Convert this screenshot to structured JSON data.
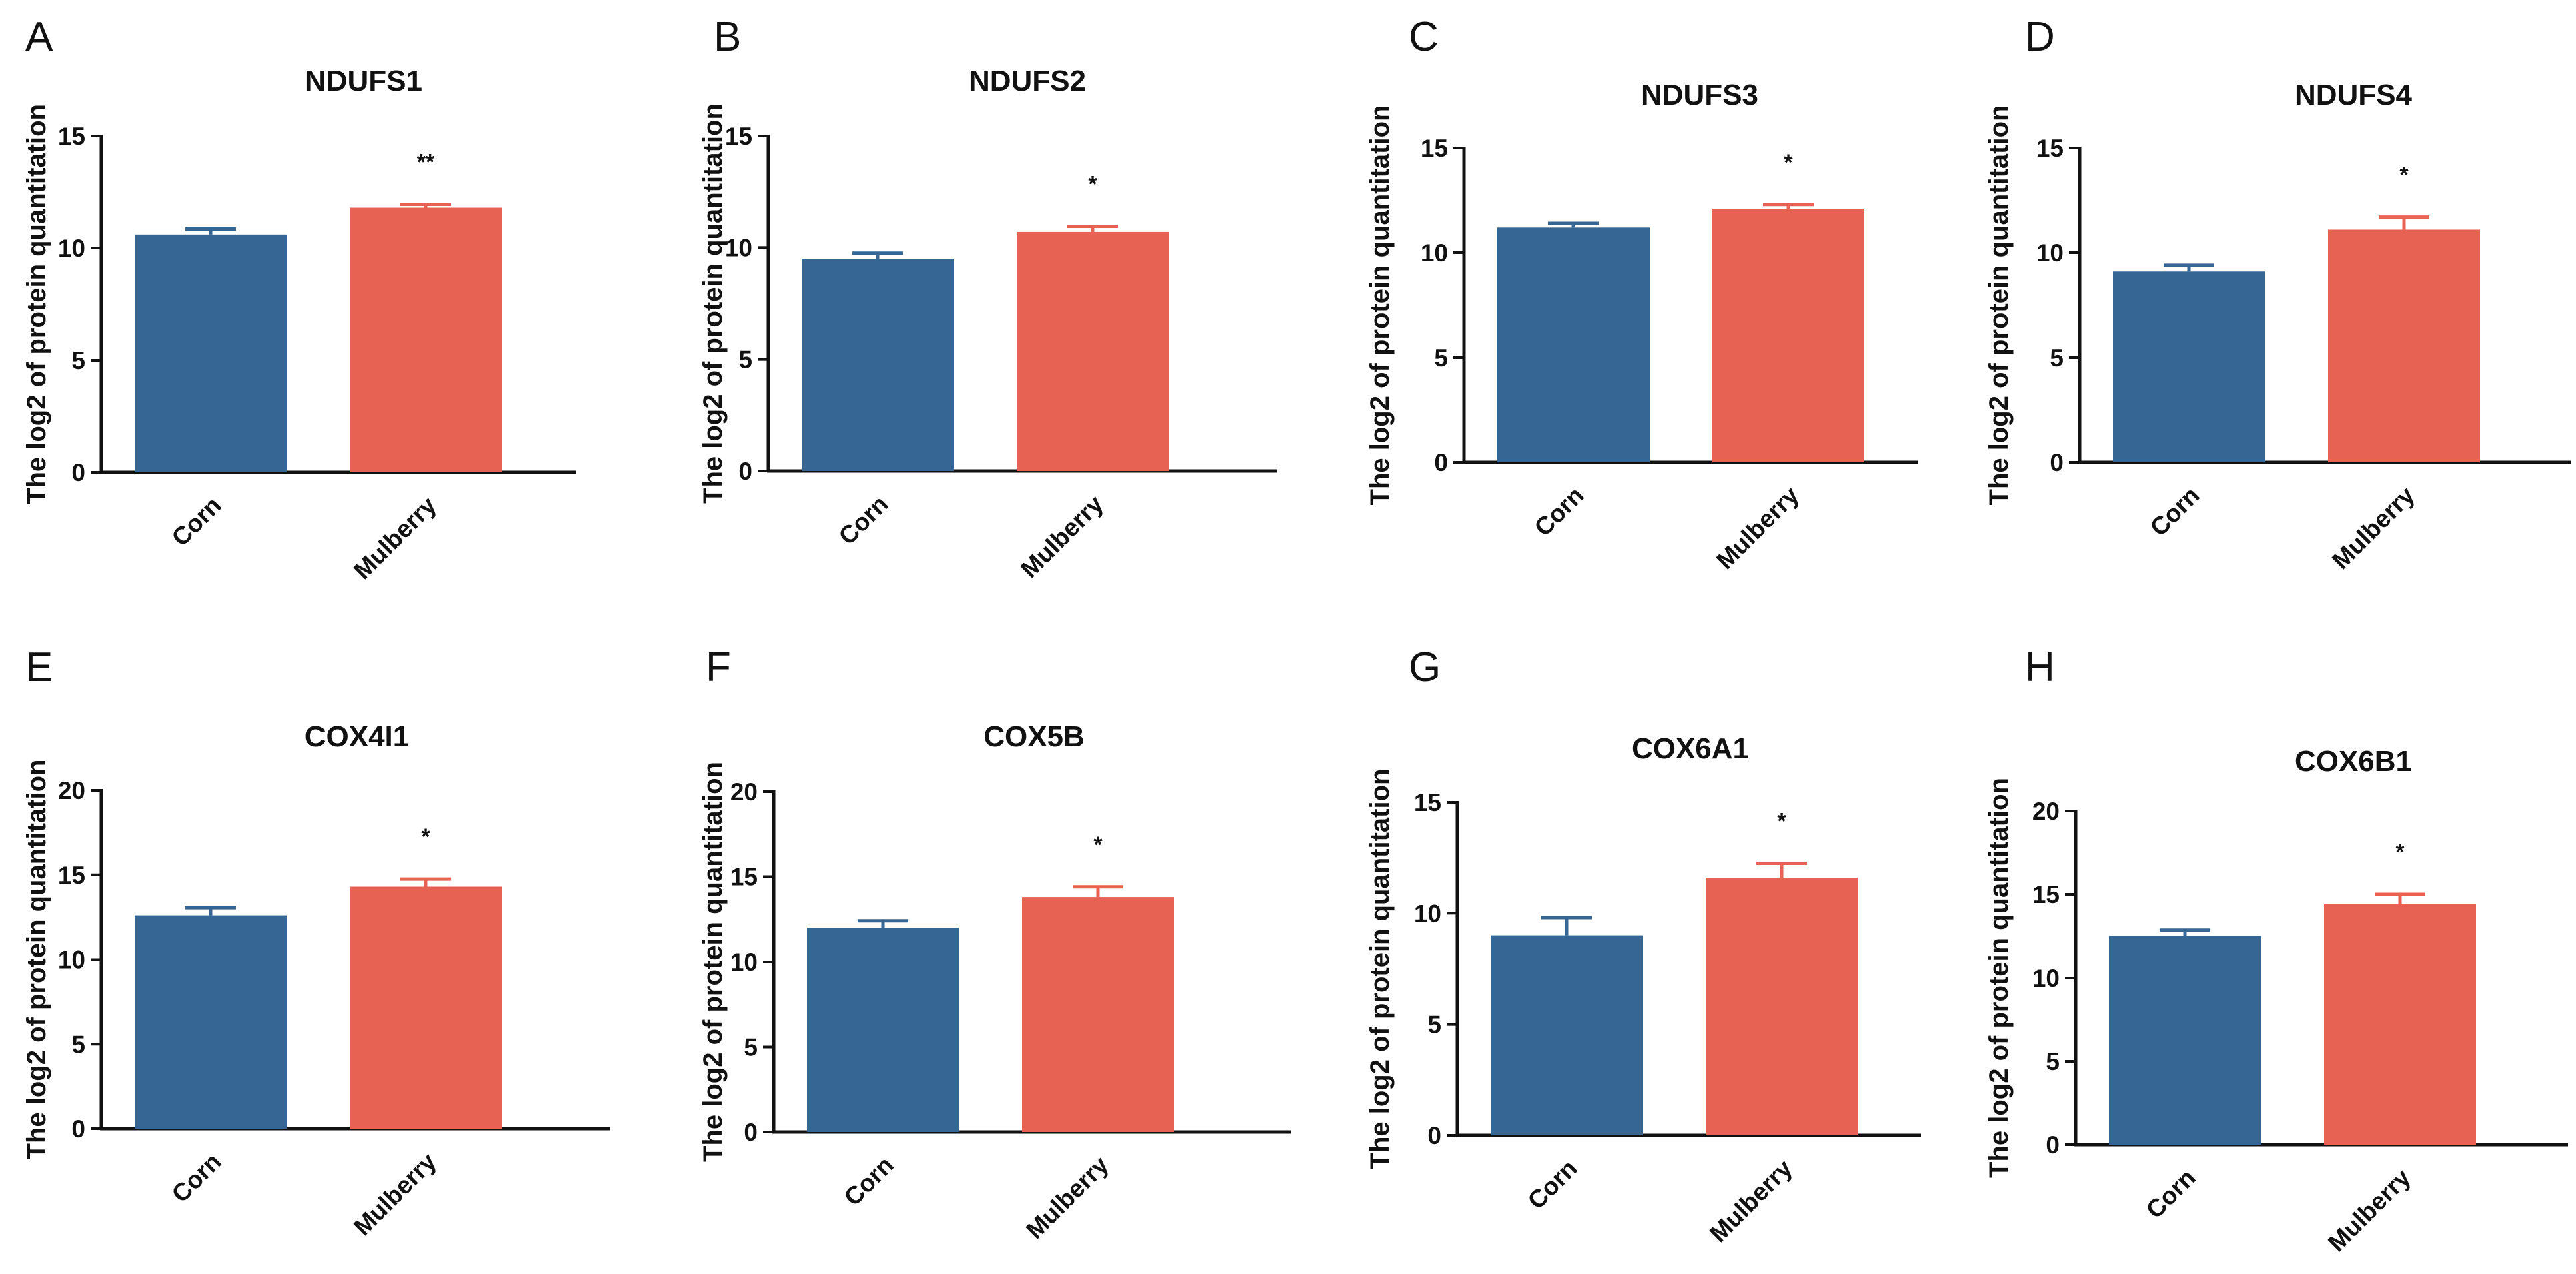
{
  "chart_data": [
    {
      "type": "bar",
      "panel": "A",
      "title": "NDUFS1",
      "ylabel": "The log2 of protein quantitation",
      "categories": [
        "Corn",
        "Mulberry"
      ],
      "values": [
        10.6,
        11.8
      ],
      "errors": [
        0.25,
        0.15
      ],
      "significance": [
        "",
        "**"
      ],
      "ylim": [
        0,
        15
      ],
      "yticks": [
        "0",
        "5",
        "10",
        "15"
      ],
      "colors": [
        "#366694",
        "#E86254"
      ]
    },
    {
      "type": "bar",
      "panel": "B",
      "title": "NDUFS2",
      "ylabel": "The log2 of protein quantitation",
      "categories": [
        "Corn",
        "Mulberry"
      ],
      "values": [
        9.5,
        10.7
      ],
      "errors": [
        0.25,
        0.25
      ],
      "significance": [
        "",
        "*"
      ],
      "ylim": [
        0,
        15
      ],
      "yticks": [
        "0",
        "5",
        "10",
        "15"
      ],
      "colors": [
        "#366694",
        "#E86254"
      ]
    },
    {
      "type": "bar",
      "panel": "C",
      "title": "NDUFS3",
      "ylabel": "The log2 of protein quantitation",
      "categories": [
        "Corn",
        "Mulberry"
      ],
      "values": [
        11.2,
        12.1
      ],
      "errors": [
        0.2,
        0.2
      ],
      "significance": [
        "",
        "*"
      ],
      "ylim": [
        0,
        15
      ],
      "yticks": [
        "0",
        "5",
        "10",
        "15"
      ],
      "colors": [
        "#366694",
        "#E86254"
      ]
    },
    {
      "type": "bar",
      "panel": "D",
      "title": "NDUFS4",
      "ylabel": "The log2 of protein quantitation",
      "categories": [
        "Corn",
        "Mulberry"
      ],
      "values": [
        9.1,
        11.1
      ],
      "errors": [
        0.3,
        0.6
      ],
      "significance": [
        "",
        "*"
      ],
      "ylim": [
        0,
        15
      ],
      "yticks": [
        "0",
        "5",
        "10",
        "15"
      ],
      "colors": [
        "#366694",
        "#E86254"
      ]
    },
    {
      "type": "bar",
      "panel": "E",
      "title": "COX4I1",
      "ylabel": "The log2 of protein quantitation",
      "categories": [
        "Corn",
        "Mulberry"
      ],
      "values": [
        12.6,
        14.3
      ],
      "errors": [
        0.45,
        0.45
      ],
      "significance": [
        "",
        "*"
      ],
      "ylim": [
        0,
        20
      ],
      "yticks": [
        "0",
        "5",
        "10",
        "15",
        "20"
      ],
      "colors": [
        "#366694",
        "#E86254"
      ]
    },
    {
      "type": "bar",
      "panel": "F",
      "title": "COX5B",
      "ylabel": "The log2 of protein quantitation",
      "categories": [
        "Corn",
        "Mulberry"
      ],
      "values": [
        12.0,
        13.8
      ],
      "errors": [
        0.4,
        0.6
      ],
      "significance": [
        "",
        "*"
      ],
      "ylim": [
        0,
        20
      ],
      "yticks": [
        "0",
        "5",
        "10",
        "15",
        "20"
      ],
      "colors": [
        "#366694",
        "#E86254"
      ]
    },
    {
      "type": "bar",
      "panel": "G",
      "title": "COX6A1",
      "ylabel": "The log2 of protein quantitation",
      "categories": [
        "Corn",
        "Mulberry"
      ],
      "values": [
        9.0,
        11.6
      ],
      "errors": [
        0.8,
        0.65
      ],
      "significance": [
        "",
        "*"
      ],
      "ylim": [
        0,
        15
      ],
      "yticks": [
        "0",
        "5",
        "10",
        "15"
      ],
      "colors": [
        "#366694",
        "#E86254"
      ]
    },
    {
      "type": "bar",
      "panel": "H",
      "title": "COX6B1",
      "ylabel": "The log2 of protein quantitation",
      "categories": [
        "Corn",
        "Mulberry"
      ],
      "values": [
        12.5,
        14.4
      ],
      "errors": [
        0.35,
        0.6
      ],
      "significance": [
        "",
        "*"
      ],
      "ylim": [
        0,
        20
      ],
      "yticks": [
        "0",
        "5",
        "10",
        "15",
        "20"
      ],
      "colors": [
        "#366694",
        "#E86254"
      ]
    }
  ]
}
